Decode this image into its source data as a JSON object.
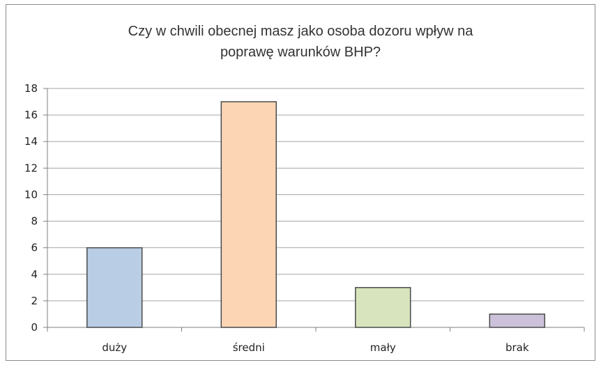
{
  "chart_data": {
    "type": "bar",
    "title_lines": [
      "Czy w chwili obecnej masz jako osoba dozoru wpływ na",
      "poprawę warunków BHP?"
    ],
    "categories": [
      "duży",
      "średni",
      "mały",
      "brak"
    ],
    "values": [
      6,
      17,
      3,
      1
    ],
    "bar_colors": [
      "#b9cde5",
      "#fcd5b5",
      "#d7e4bd",
      "#ccc1da"
    ],
    "bar_border_colors": [
      "#4a4a4a",
      "#4a4a4a",
      "#4a4a4a",
      "#4a4a4a"
    ],
    "ylim": [
      0,
      18
    ],
    "y_ticks": [
      0,
      2,
      4,
      6,
      8,
      10,
      12,
      14,
      16,
      18
    ],
    "grid": true,
    "legend": "none",
    "gridline_color": "#a6a6a6"
  }
}
